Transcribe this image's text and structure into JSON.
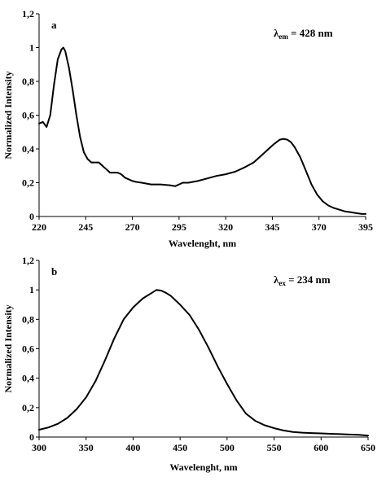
{
  "chart_data": [
    {
      "type": "line",
      "panel_label": "a",
      "annotation": {
        "symbol": "λ",
        "sub": "em",
        "text": " = 428 nm"
      },
      "xlabel": "Wavelenght, nm",
      "ylabel": "Normalized Intensity",
      "xlim": [
        220,
        395
      ],
      "ylim": [
        0,
        1.2
      ],
      "xticks": [
        "220",
        "245",
        "270",
        "295",
        "320",
        "345",
        "370",
        "395"
      ],
      "yticks": [
        "0",
        "0,2",
        "0,4",
        "0,6",
        "0,8",
        "1",
        "1,2"
      ],
      "series": [
        {
          "x": [
            220,
            222,
            224,
            226,
            228,
            230,
            232,
            233,
            234,
            236,
            238,
            240,
            242,
            244,
            246,
            248,
            250,
            252,
            254,
            256,
            258,
            260,
            262,
            264,
            266,
            268,
            270,
            272,
            275,
            280,
            285,
            290,
            293,
            295,
            297,
            300,
            305,
            310,
            315,
            320,
            325,
            330,
            335,
            340,
            343,
            346,
            349,
            351,
            353,
            355,
            357,
            360,
            363,
            366,
            369,
            372,
            375,
            378,
            381,
            384,
            387,
            390,
            393,
            395
          ],
          "y": [
            0.55,
            0.56,
            0.53,
            0.6,
            0.78,
            0.93,
            0.99,
            1.0,
            0.98,
            0.88,
            0.75,
            0.6,
            0.47,
            0.38,
            0.34,
            0.32,
            0.32,
            0.32,
            0.3,
            0.28,
            0.26,
            0.26,
            0.26,
            0.25,
            0.23,
            0.22,
            0.21,
            0.205,
            0.2,
            0.19,
            0.19,
            0.185,
            0.18,
            0.19,
            0.2,
            0.2,
            0.21,
            0.225,
            0.24,
            0.25,
            0.265,
            0.29,
            0.32,
            0.37,
            0.4,
            0.43,
            0.455,
            0.46,
            0.455,
            0.44,
            0.41,
            0.35,
            0.27,
            0.19,
            0.13,
            0.09,
            0.065,
            0.05,
            0.04,
            0.03,
            0.025,
            0.02,
            0.015,
            0.015
          ]
        }
      ]
    },
    {
      "type": "line",
      "panel_label": "b",
      "annotation": {
        "symbol": "λ",
        "sub": "ex",
        "text": " = 234 nm"
      },
      "xlabel": "Wavelenght, nm",
      "ylabel": "Normalized Intensity",
      "xlim": [
        300,
        650
      ],
      "ylim": [
        0,
        1.2
      ],
      "xticks": [
        "300",
        "350",
        "400",
        "450",
        "500",
        "550",
        "600",
        "650"
      ],
      "yticks": [
        "0",
        "0,2",
        "0,4",
        "0,6",
        "0,8",
        "1",
        "1,2"
      ],
      "series": [
        {
          "x": [
            300,
            310,
            320,
            330,
            340,
            350,
            360,
            370,
            380,
            390,
            400,
            405,
            410,
            415,
            420,
            425,
            430,
            435,
            440,
            450,
            460,
            470,
            480,
            490,
            500,
            510,
            520,
            530,
            540,
            550,
            560,
            570,
            580,
            590,
            600,
            610,
            620,
            630,
            640,
            650
          ],
          "y": [
            0.05,
            0.065,
            0.09,
            0.13,
            0.19,
            0.27,
            0.38,
            0.52,
            0.67,
            0.8,
            0.88,
            0.91,
            0.94,
            0.96,
            0.98,
            1.0,
            0.995,
            0.98,
            0.96,
            0.9,
            0.83,
            0.73,
            0.61,
            0.48,
            0.36,
            0.25,
            0.16,
            0.11,
            0.08,
            0.06,
            0.045,
            0.035,
            0.03,
            0.027,
            0.025,
            0.022,
            0.02,
            0.017,
            0.015,
            0.01
          ]
        }
      ]
    }
  ]
}
